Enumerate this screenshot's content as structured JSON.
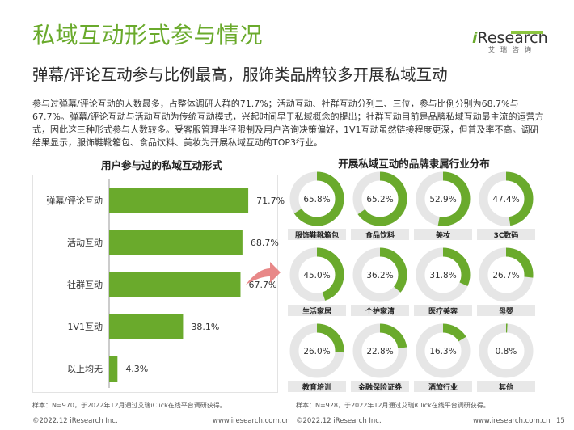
{
  "header": {
    "title": "私域互动形式参与情况",
    "subtitle": "弹幕/评论互动参与比例最高，服饰类品牌较多开展私域互动",
    "description": "参与过弹幕/评论互动的人数最多，占整体调研人群的71.7%；活动互动、社群互动分列二、三位，参与比例分别为68.7%与67.7%。弹幕/评论互动与活动互动为传统互动模式，兴起时间早于私域概念的提出；社群互动目前是品牌私域互动最主流的运营方式，因此这三种形式参与人数较多。受客服管理半径限制及用户咨询决策偏好，1V1互动虽然链接程度更深，但普及率不高。调研结果显示，服饰鞋靴箱包、食品饮料、美妆为开展私域互动的TOP3行业。"
  },
  "logo": {
    "text_i": "i",
    "text_rest": "Research",
    "text_cn": "艾瑞咨询"
  },
  "colors": {
    "accent": "#6aaa2c",
    "bar": "#6aaa2c",
    "donut_fill": "#6aaa2c",
    "donut_track": "#e6e6e6",
    "arrow": "#e88888",
    "label_bg": "#e8e8e8"
  },
  "chart_data": [
    {
      "type": "bar",
      "orientation": "horizontal",
      "title": "用户参与过的私域互动形式",
      "categories": [
        "弹幕/评论互动",
        "活动互动",
        "社群互动",
        "1V1互动",
        "以上均无"
      ],
      "values": [
        71.7,
        68.7,
        67.7,
        38.1,
        4.3
      ],
      "value_labels": [
        "71.7%",
        "68.7%",
        "67.7%",
        "38.1%",
        "4.3%"
      ],
      "unit": "%",
      "xlim": [
        0,
        100
      ],
      "grid": false
    },
    {
      "type": "pie",
      "subtype": "donut-grid",
      "title": "开展私域互动的品牌隶属行业分布",
      "categories": [
        "服饰鞋靴箱包",
        "食品饮料",
        "美妆",
        "3C数码",
        "生活家居",
        "个护家清",
        "医疗美容",
        "母婴",
        "教育培训",
        "金融保险证券",
        "酒旅行业",
        "其他"
      ],
      "values": [
        65.8,
        65.2,
        52.9,
        47.4,
        45.0,
        36.2,
        31.8,
        26.7,
        26.0,
        22.8,
        16.3,
        0.8
      ],
      "value_labels": [
        "65.8%",
        "65.2%",
        "52.9%",
        "47.4%",
        "45.0%",
        "36.2%",
        "31.8%",
        "26.7%",
        "26.0%",
        "22.8%",
        "16.3%",
        "0.8%"
      ],
      "unit": "%"
    }
  ],
  "notes": {
    "left": "样本：N=970，于2022年12月通过艾瑞iClick在线平台调研获得。",
    "right": "样本：N=928，于2022年12月通过艾瑞iClick在线平台调研获得。"
  },
  "footer": {
    "copyright_left": "©2022.12 iResearch Inc.",
    "url_left": "www.iresearch.com.cn",
    "copyright_right": "©2022.12 iResearch Inc.",
    "url_right": "www.iresearch.com.cn",
    "page": "15"
  }
}
